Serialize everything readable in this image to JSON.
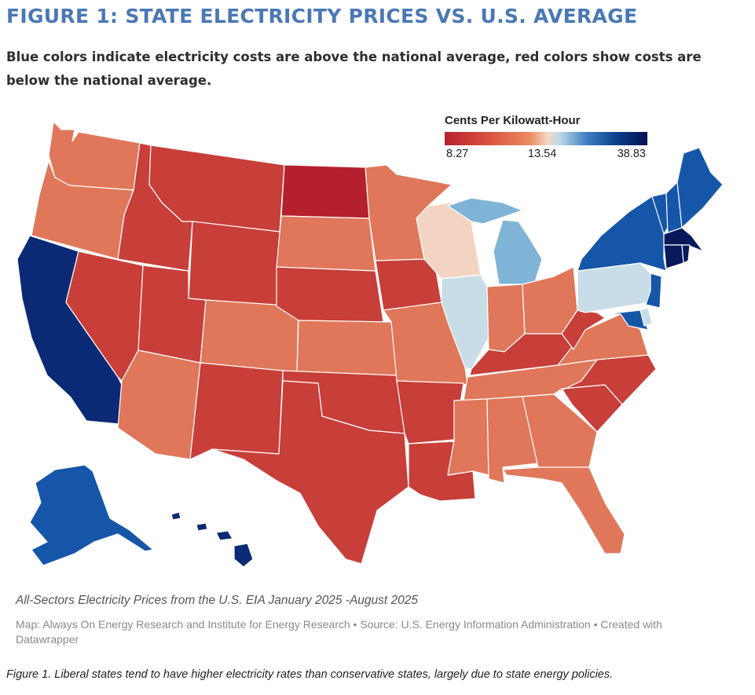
{
  "title": "FIGURE 1: STATE ELECTRICITY PRICES VS. U.S. AVERAGE",
  "subtitle": "Blue colors indicate electricity costs are above the national average, red colors show costs are below the national average.",
  "legend": {
    "title": "Cents Per Kilowatt-Hour",
    "min_label": "8.27",
    "mid_label": "13.54",
    "max_label": "38.83"
  },
  "colors": {
    "far_below": "#b5202d",
    "below": "#c83e39",
    "slightly_below": "#e0775a",
    "near_average_low": "#f3d4c2",
    "near_average_high": "#c9dde8",
    "above": "#7fb4d6",
    "well_above": "#1656a8",
    "far_above": "#0a2a75",
    "highest": "#081a5c"
  },
  "note": "All-Sectors Electricity Prices from the U.S. EIA January 2025 -August 2025",
  "credit": "Map: Always On Energy Research and Institute for Energy Research • Source: U.S. Energy Information Administration • Created with Datawrapper",
  "caption": "Figure 1. Liberal states tend to have higher electricity rates than conservative states, largely due to state energy policies."
}
